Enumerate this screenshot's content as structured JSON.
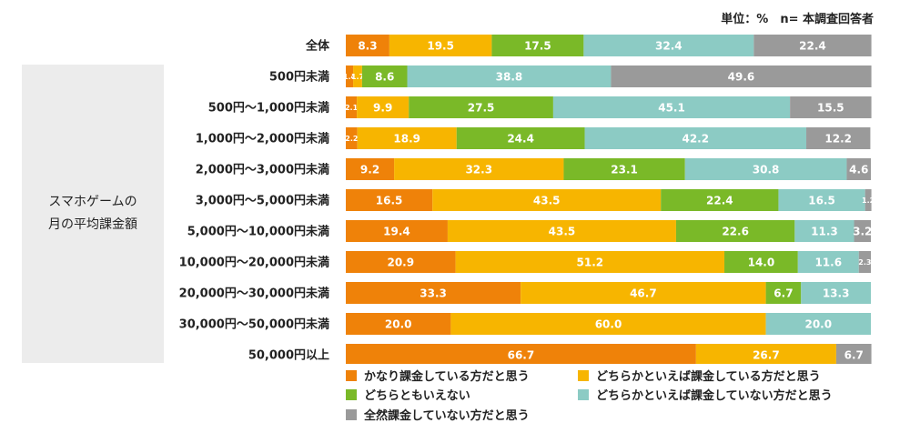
{
  "unit_label": "単位：%　n= 本調査回答者",
  "group_label": [
    "スマホゲームの",
    "月の平均課金額"
  ],
  "colors": [
    "#ef8209",
    "#f7b500",
    "#7ab928",
    "#8ccbc4",
    "#9a9a9a"
  ],
  "chart_data": {
    "type": "bar",
    "orientation": "horizontal",
    "stacked": true,
    "xlim": [
      0,
      100
    ],
    "categories": [
      "全体",
      "500円未満",
      "500円～1,000円未満",
      "1,000円～2,000円未満",
      "2,000円～3,000円未満",
      "3,000円～5,000円未満",
      "5,000円～10,000円未満",
      "10,000円～20,000円未満",
      "20,000円～30,000円未満",
      "30,000円～50,000円未満",
      "50,000円以上"
    ],
    "series": [
      {
        "name": "かなり課金している方だと思う",
        "values": [
          8.3,
          1.4,
          2.1,
          2.2,
          9.2,
          16.5,
          19.4,
          20.9,
          33.3,
          20.0,
          66.7
        ],
        "labels": [
          "8.3",
          "1.4",
          "2.1",
          "2.2",
          "9.2",
          "16.5",
          "19.4",
          "20.9",
          "33.3",
          "20.0",
          "66.7"
        ]
      },
      {
        "name": "どちらかといえば課金している方だと思う",
        "values": [
          19.5,
          1.7,
          9.9,
          18.9,
          32.3,
          43.5,
          43.5,
          51.2,
          46.7,
          60.0,
          26.7
        ],
        "labels": [
          "19.5",
          "1.7",
          "9.9",
          "18.9",
          "32.3",
          "43.5",
          "43.5",
          "51.2",
          "46.7",
          "60.0",
          "26.7"
        ]
      },
      {
        "name": "どちらともいえない",
        "values": [
          17.5,
          8.6,
          27.5,
          24.4,
          23.1,
          22.4,
          22.6,
          14.0,
          6.7,
          0,
          0
        ],
        "labels": [
          "17.5",
          "8.6",
          "27.5",
          "24.4",
          "23.1",
          "22.4",
          "22.6",
          "14.0",
          "6.7",
          "",
          ""
        ]
      },
      {
        "name": "どちらかといえば課金していない方だと思う",
        "values": [
          32.4,
          38.8,
          45.1,
          42.2,
          30.8,
          16.5,
          11.3,
          11.6,
          13.3,
          20.0,
          0
        ],
        "labels": [
          "32.4",
          "38.8",
          "45.1",
          "42.2",
          "30.8",
          "16.5",
          "11.3",
          "11.6",
          "13.3",
          "20.0",
          ""
        ]
      },
      {
        "name": "全然課金していない方だと思う",
        "values": [
          22.4,
          49.6,
          15.5,
          12.2,
          4.6,
          1.2,
          3.2,
          2.3,
          0,
          0,
          6.7
        ],
        "labels": [
          "22.4",
          "49.6",
          "15.5",
          "12.2",
          "4.6",
          "1.2",
          "3.2",
          "2.3",
          "",
          "",
          "6.7"
        ]
      }
    ]
  }
}
